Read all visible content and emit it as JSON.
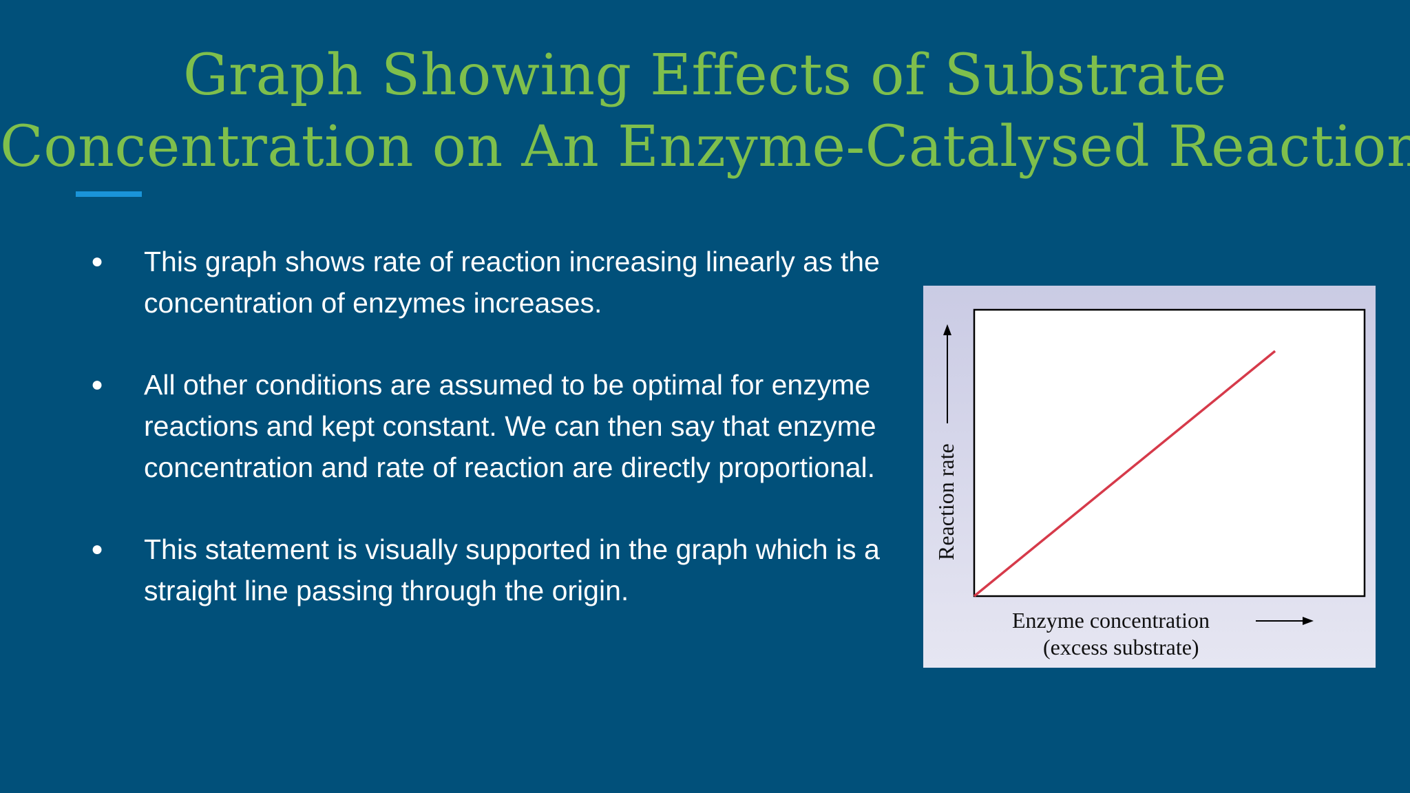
{
  "slide": {
    "title_line1": "Graph Showing Effects of Substrate",
    "title_line2": "Concentration on An Enzyme-Catalysed Reaction",
    "bullets": [
      "This graph shows rate of reaction increasing linearly as the concentration of enzymes increases.",
      "All other conditions are assumed to be optimal for enzyme reactions and kept constant. We can then say that enzyme concentration and rate of reaction are directly proportional.",
      "This statement is visually supported in the graph which is a straight line passing through the origin."
    ]
  },
  "figure": {
    "ylabel": "Reaction rate",
    "xlabel_line1": "Enzyme concentration",
    "xlabel_line2": "(excess substrate)",
    "line_color": "#d63a4a"
  },
  "colors": {
    "background": "#01507a",
    "title": "#7fbf4c",
    "accent": "#1a94d9"
  }
}
